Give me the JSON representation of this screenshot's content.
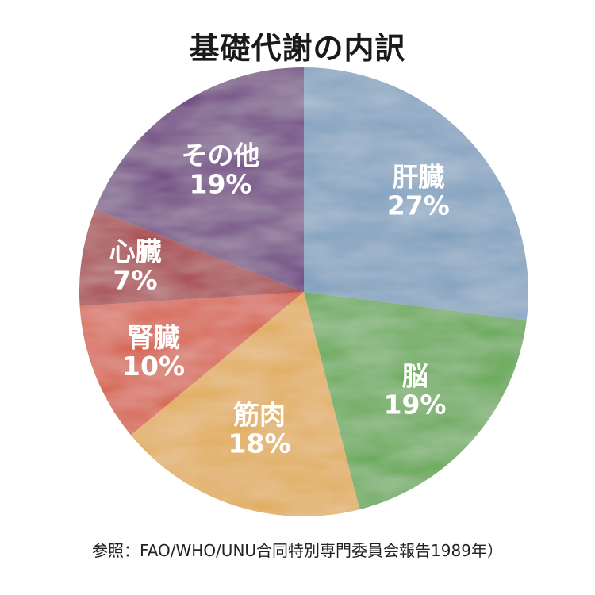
{
  "chart_data": {
    "type": "pie",
    "title": "基礎代謝の内訳",
    "slices": [
      {
        "label": "肝臓",
        "value": 27,
        "value_label": "27%",
        "color": "#7b9dbc"
      },
      {
        "label": "脳",
        "value": 19,
        "value_label": "19%",
        "color": "#5fa64c"
      },
      {
        "label": "筋肉",
        "value": 18,
        "value_label": "18%",
        "color": "#e0a94e"
      },
      {
        "label": "腎臓",
        "value": 10,
        "value_label": "10%",
        "color": "#d4553a"
      },
      {
        "label": "心臓",
        "value": 7,
        "value_label": "7%",
        "color": "#a32a35"
      },
      {
        "label": "その他",
        "value": 19,
        "value_label": "19%",
        "color": "#6a3a7e"
      }
    ],
    "start": "top",
    "direction": "clockwise"
  },
  "source": "参照：FAO/WHO/UNU合同特別専門委員会報告1989年）"
}
